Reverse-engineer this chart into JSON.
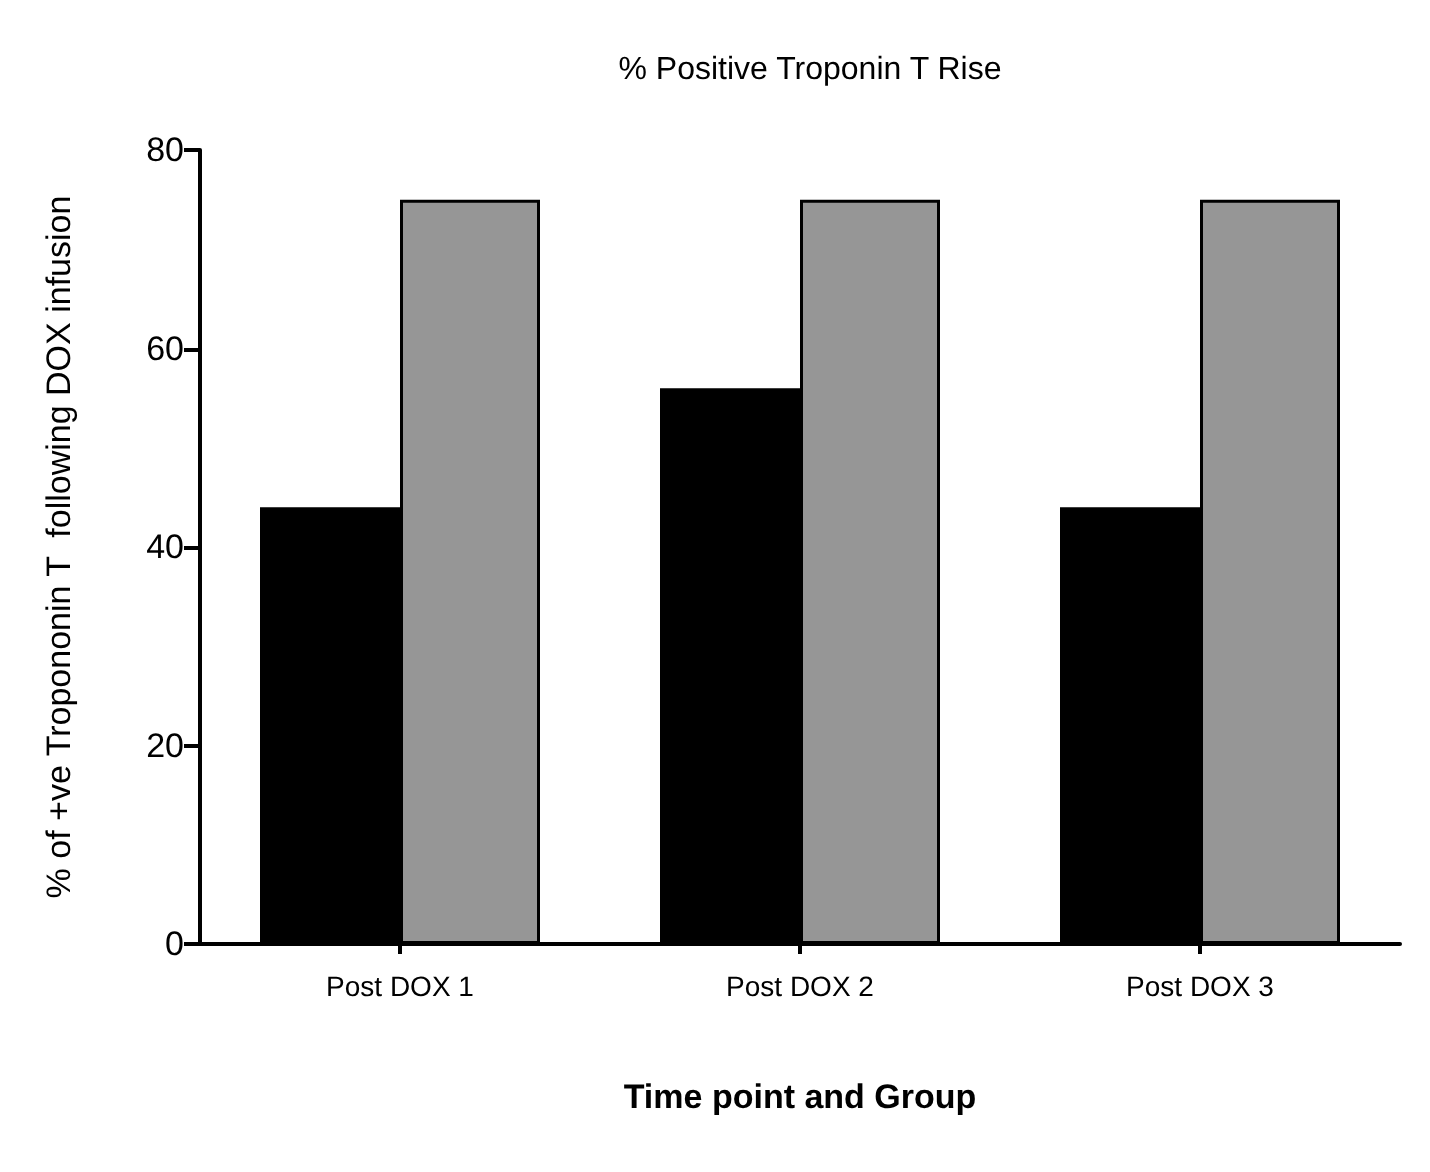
{
  "chart_data": {
    "type": "bar",
    "title": "% Positive Troponin T Rise",
    "xlabel": "Time point and Group",
    "ylabel": "% of +ve Tropononin T  following DOX infusion",
    "categories": [
      "Post DOX 1",
      "Post DOX 2",
      "Post DOX 3"
    ],
    "series": [
      {
        "color": "#000000",
        "values": [
          44,
          56,
          44
        ]
      },
      {
        "color": "#969696",
        "values": [
          75,
          75,
          75
        ]
      }
    ],
    "ylim": [
      0,
      80
    ],
    "yticks": [
      0,
      20,
      40,
      60,
      80
    ],
    "grid": false
  }
}
